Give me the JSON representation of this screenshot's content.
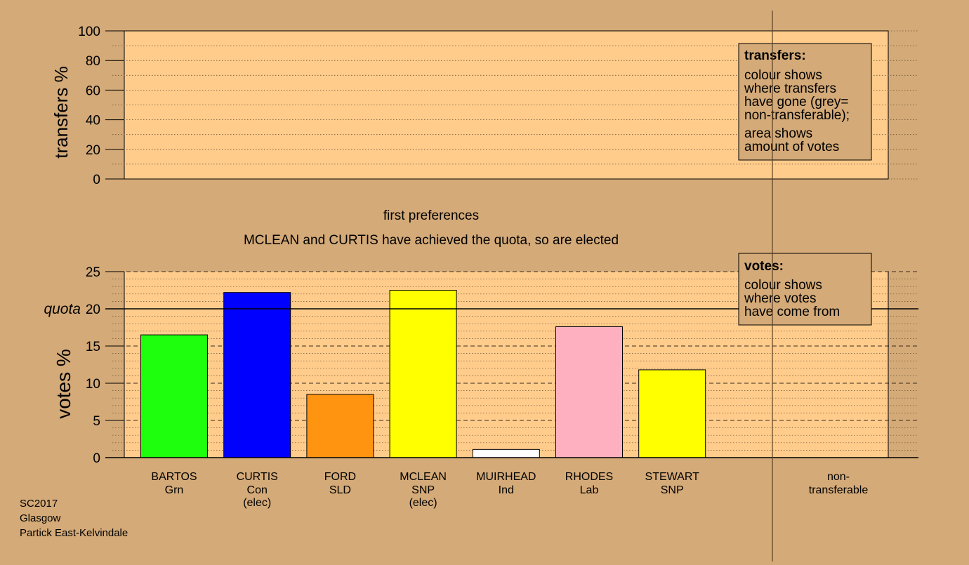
{
  "colors": {
    "background": "#d4aa78",
    "panel": "#ffcc8c",
    "legend_box": "#d4aa78",
    "quota_line": "#000000",
    "grid": "#5a4632"
  },
  "top_panel": {
    "ylabel": "transfers %",
    "yticks": [
      "0",
      "20",
      "40",
      "60",
      "80",
      "100"
    ],
    "ylim": [
      0,
      100
    ],
    "legend": {
      "title": "transfers:",
      "lines": [
        "colour shows",
        "where transfers",
        "have gone (grey=",
        "non-transferable);"
      ],
      "lines2": [
        "area shows",
        "amount of votes"
      ]
    }
  },
  "stage_label": "first preferences",
  "status_message": "MCLEAN and CURTIS have achieved the quota, so are elected",
  "bottom_panel": {
    "ylabel": "votes %",
    "quota_label": "quota",
    "yticks": [
      "0",
      "5",
      "10",
      "15",
      "20",
      "25"
    ],
    "legend": {
      "title": "votes:",
      "lines": [
        "colour shows",
        "where votes",
        "have come from"
      ]
    }
  },
  "chart_data": [
    {
      "type": "bar",
      "title": "",
      "ylabel": "transfers %",
      "ylim": [
        0,
        100
      ],
      "categories": [],
      "values": []
    },
    {
      "type": "bar",
      "title": "first preferences",
      "ylabel": "votes %",
      "ylim": [
        0,
        25
      ],
      "quota": 20,
      "categories": [
        {
          "name": "BARTOS",
          "party": "Grn",
          "note": ""
        },
        {
          "name": "CURTIS",
          "party": "Con",
          "note": "(elec)"
        },
        {
          "name": "FORD",
          "party": "SLD",
          "note": ""
        },
        {
          "name": "MCLEAN",
          "party": "SNP",
          "note": "(elec)"
        },
        {
          "name": "MUIRHEAD",
          "party": "Ind",
          "note": ""
        },
        {
          "name": "RHODES",
          "party": "Lab",
          "note": ""
        },
        {
          "name": "STEWART",
          "party": "SNP",
          "note": ""
        }
      ],
      "values": [
        16.5,
        22.2,
        8.5,
        22.5,
        1.1,
        17.6,
        11.8
      ],
      "bar_colors": [
        "#1eff0e",
        "#0000ff",
        "#ff9410",
        "#ffff00",
        "#ffffff",
        "#ffb0c0",
        "#ffff00"
      ],
      "extra_column": [
        "non-",
        "transferable"
      ],
      "grid": true
    }
  ],
  "footer": {
    "election": "SC2017",
    "council": "Glasgow",
    "ward": "Partick East-Kelvindale"
  }
}
